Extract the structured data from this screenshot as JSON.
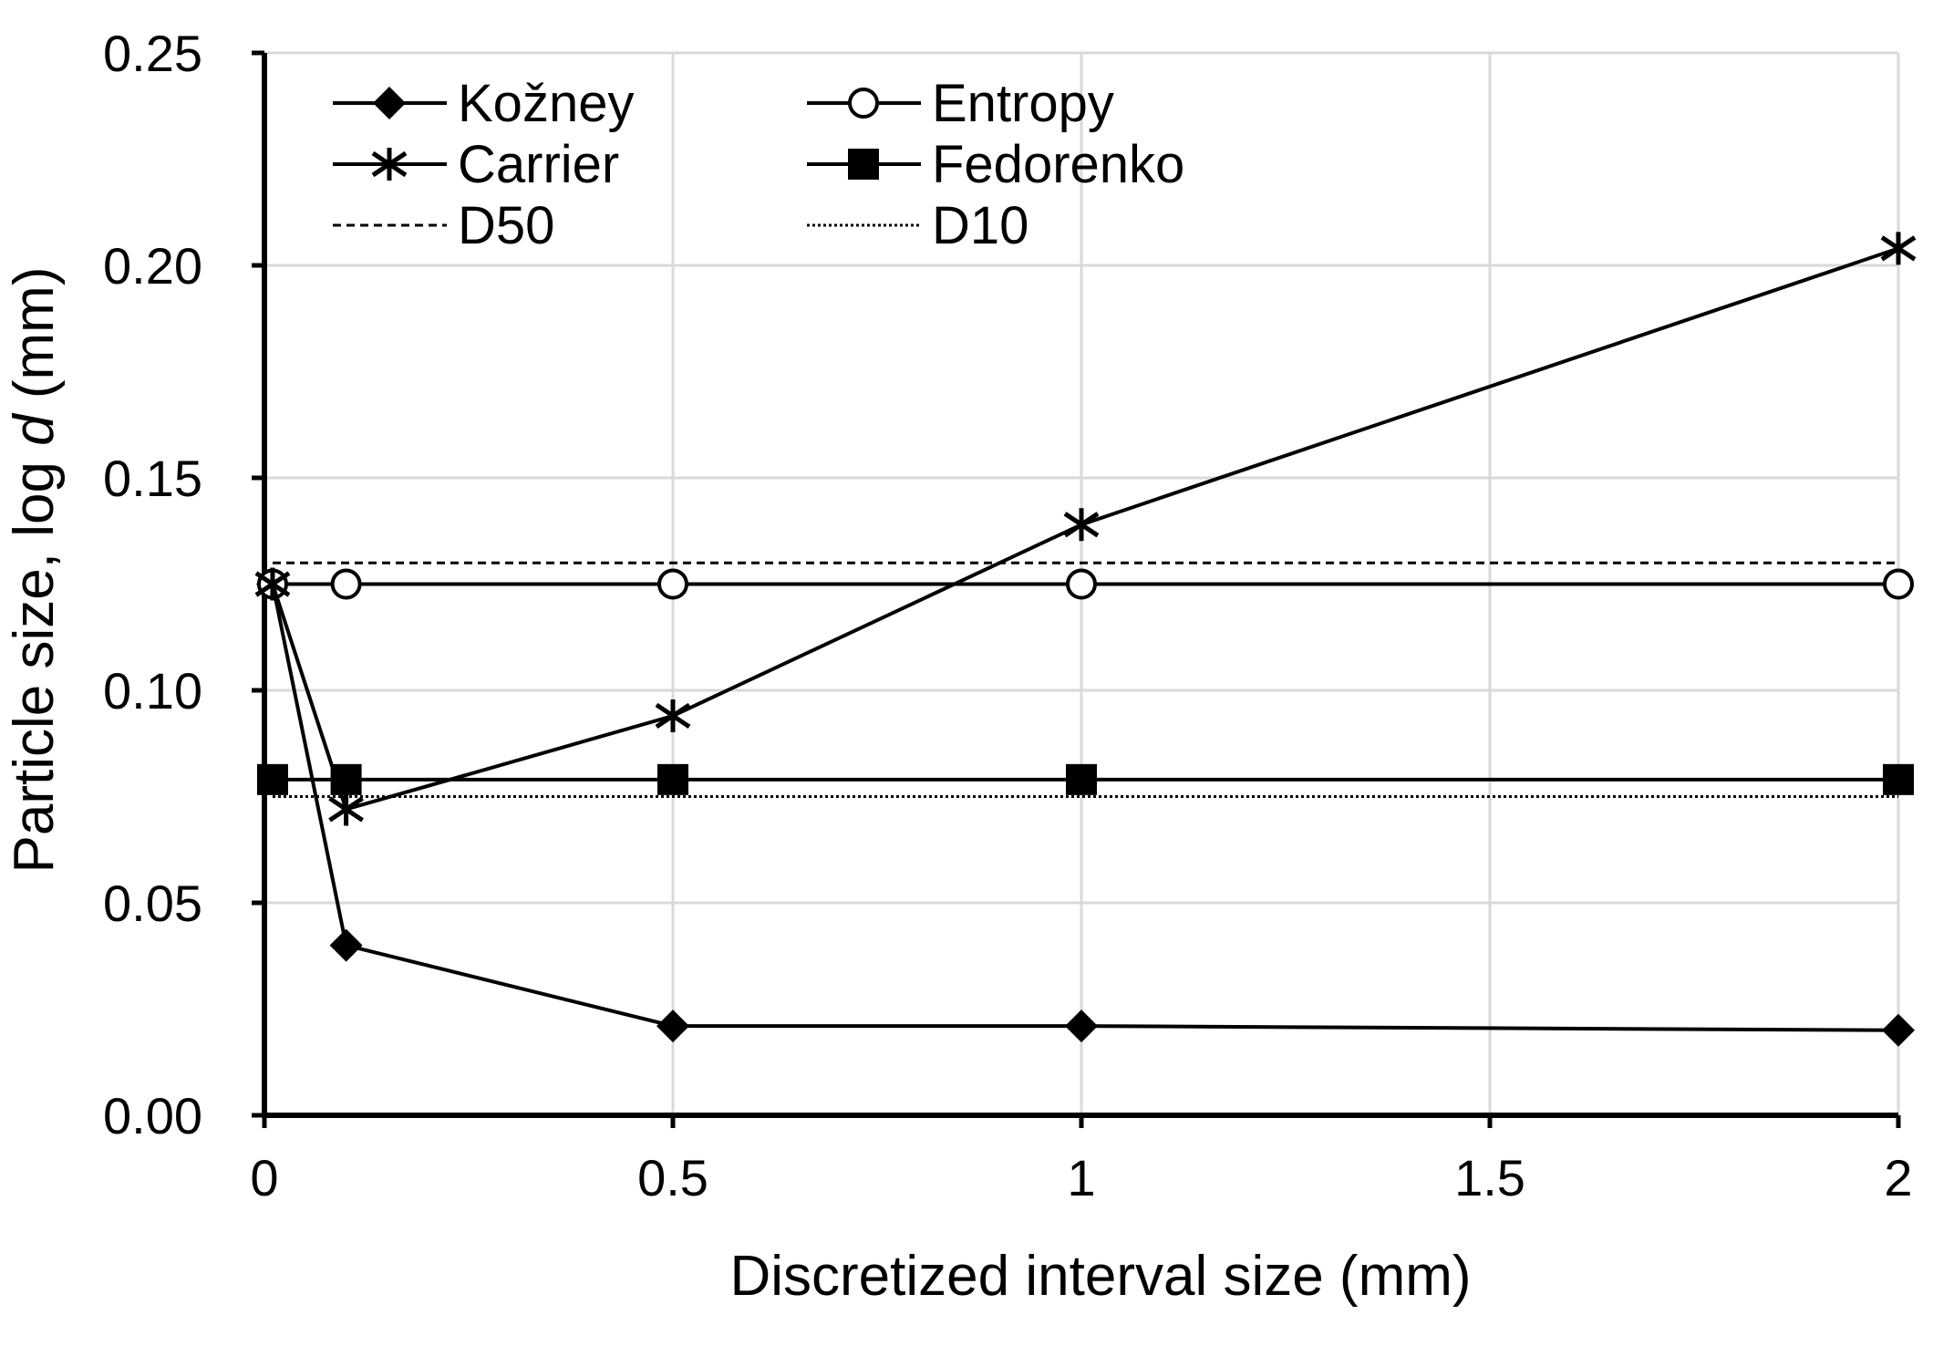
{
  "chart_data": {
    "type": "line",
    "title": "",
    "xlabel": "Discretized interval size (mm)",
    "ylabel_prefix": "Particle size, log ",
    "ylabel_italic": "d",
    "ylabel_suffix": " (mm)",
    "xlim": [
      0,
      2
    ],
    "ylim": [
      0,
      0.25
    ],
    "xticks": [
      0,
      0.5,
      1,
      1.5,
      2
    ],
    "xtick_labels": [
      "0",
      "0.5",
      "1",
      "1.5",
      "2"
    ],
    "yticks": [
      0,
      0.05,
      0.1,
      0.15,
      0.2,
      0.25
    ],
    "ytick_labels": [
      "0.00",
      "0.05",
      "0.10",
      "0.15",
      "0.20",
      "0.25"
    ],
    "grid": true,
    "legend_position": "top-left",
    "series": [
      {
        "name": "Kožney",
        "marker": "diamond",
        "line": "solid",
        "x": [
          0.01,
          0.1,
          0.5,
          1,
          2
        ],
        "y": [
          0.125,
          0.04,
          0.021,
          0.021,
          0.02
        ]
      },
      {
        "name": "Entropy",
        "marker": "circle-open",
        "line": "solid",
        "x": [
          0.01,
          0.1,
          0.5,
          1,
          2
        ],
        "y": [
          0.125,
          0.125,
          0.125,
          0.125,
          0.125
        ]
      },
      {
        "name": "Carrier",
        "marker": "asterisk",
        "line": "solid",
        "x": [
          0.01,
          0.1,
          0.5,
          1,
          2
        ],
        "y": [
          0.125,
          0.072,
          0.094,
          0.139,
          0.204
        ]
      },
      {
        "name": "Fedorenko",
        "marker": "square",
        "line": "solid",
        "x": [
          0.01,
          0.1,
          0.5,
          1,
          2
        ],
        "y": [
          0.079,
          0.079,
          0.079,
          0.079,
          0.079
        ]
      },
      {
        "name": "D50",
        "marker": "none",
        "line": "dashed",
        "x": [
          0.01,
          2
        ],
        "y": [
          0.13,
          0.13
        ]
      },
      {
        "name": "D10",
        "marker": "none",
        "line": "dotted",
        "x": [
          0.01,
          2
        ],
        "y": [
          0.075,
          0.075
        ]
      }
    ]
  }
}
